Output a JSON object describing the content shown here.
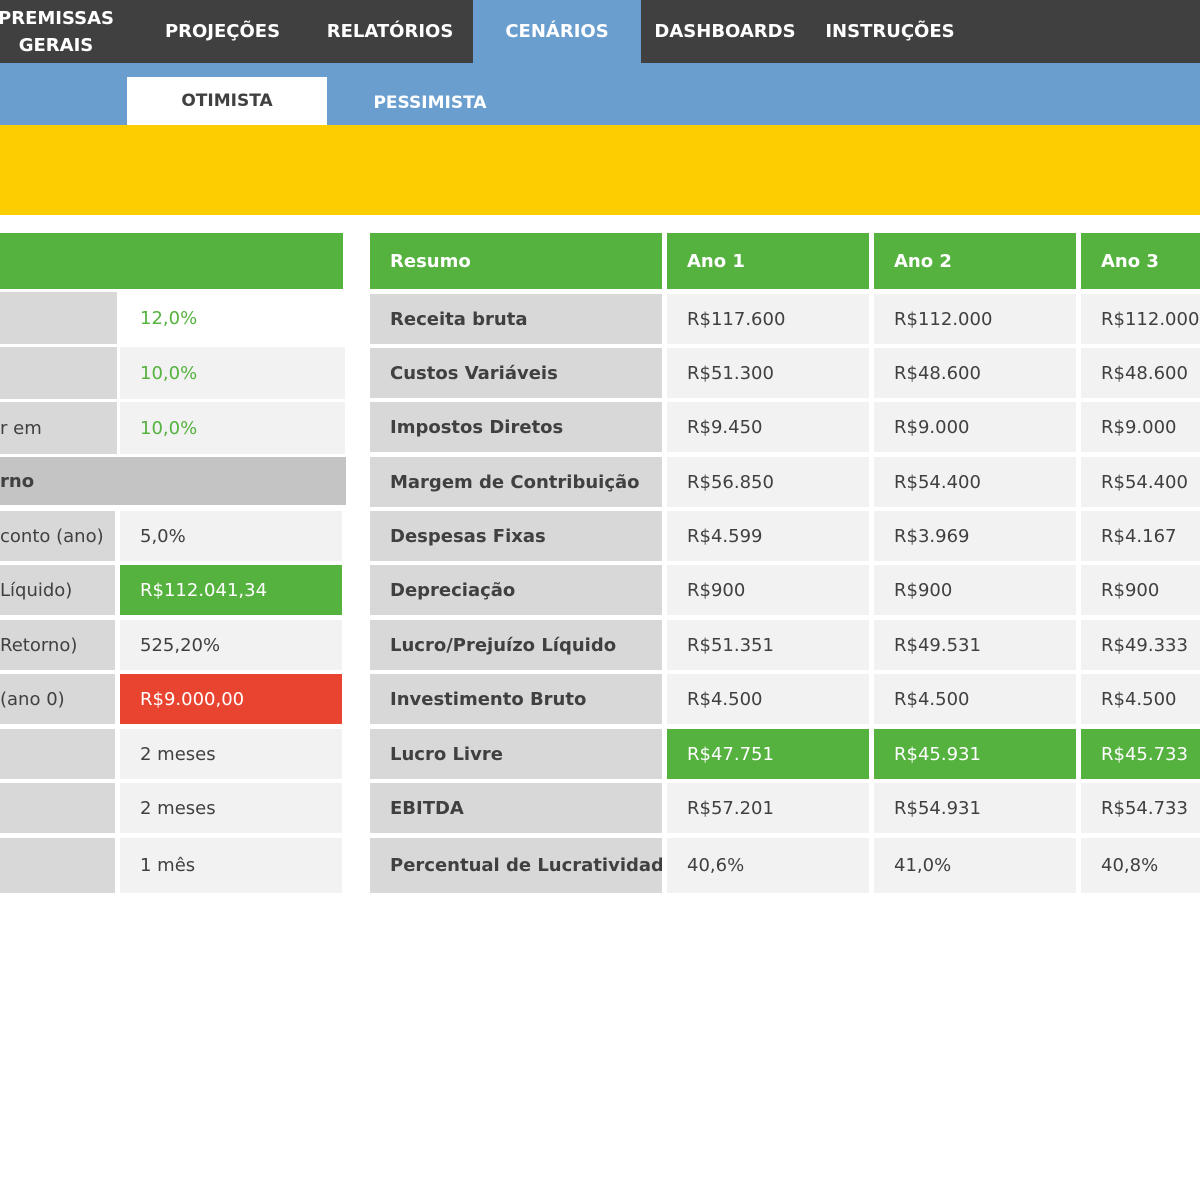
{
  "topnav": {
    "items": [
      {
        "label_line1": "PREMISSAS",
        "label_line2": "GERAIS"
      },
      {
        "label_line1": "PROJEÇÕES"
      },
      {
        "label_line1": "RELATÓRIOS"
      },
      {
        "label_line1": "CENÁRIOS"
      },
      {
        "label_line1": "DASHBOARDS"
      },
      {
        "label_line1": "INSTRUÇÕES"
      }
    ],
    "active": "CENÁRIOS"
  },
  "subnav": {
    "tabs": [
      {
        "label": "OTIMISTA"
      },
      {
        "label": "PESSIMISTA"
      }
    ],
    "active": "OTIMISTA"
  },
  "left_panel": {
    "rows": [
      {
        "label": "",
        "value": "12,0%"
      },
      {
        "label": "",
        "value": "10,0%"
      },
      {
        "label": "r em",
        "value": "10,0%"
      },
      {
        "label": "rno"
      },
      {
        "label": "conto (ano)",
        "value": "5,0%"
      },
      {
        "label": " Líquido)",
        "value": "R$112.041,34"
      },
      {
        "label": "Retorno)",
        "value": "525,20%"
      },
      {
        "label": "(ano 0)",
        "value": "R$9.000,00"
      },
      {
        "label": "",
        "value": "2 meses"
      },
      {
        "label": "",
        "value": "2 meses"
      },
      {
        "label": "",
        "value": "1 mês"
      }
    ]
  },
  "summary": {
    "headers": [
      "Resumo",
      "Ano 1",
      "Ano 2",
      "Ano 3"
    ],
    "rows": [
      {
        "label": "Receita bruta",
        "values": [
          "R$117.600",
          "R$112.000",
          "R$112.000"
        ]
      },
      {
        "label": "Custos Variáveis",
        "values": [
          "R$51.300",
          "R$48.600",
          "R$48.600"
        ]
      },
      {
        "label": "Impostos Diretos",
        "values": [
          "R$9.450",
          "R$9.000",
          "R$9.000"
        ]
      },
      {
        "label": "Margem de Contribuição",
        "values": [
          "R$56.850",
          "R$54.400",
          "R$54.400"
        ]
      },
      {
        "label": "Despesas Fixas",
        "values": [
          "R$4.599",
          "R$3.969",
          "R$4.167"
        ]
      },
      {
        "label": "Depreciação",
        "values": [
          "R$900",
          "R$900",
          "R$900"
        ]
      },
      {
        "label": "Lucro/Prejuízo Líquido",
        "values": [
          "R$51.351",
          "R$49.531",
          "R$49.333"
        ]
      },
      {
        "label": "Investimento Bruto",
        "values": [
          "R$4.500",
          "R$4.500",
          "R$4.500"
        ]
      },
      {
        "label": "Lucro Livre",
        "values": [
          "R$47.751",
          "R$45.931",
          "R$45.733"
        ]
      },
      {
        "label": "EBITDA",
        "values": [
          "R$57.201",
          "R$54.931",
          "R$54.733"
        ]
      },
      {
        "label": "Percentual de Lucratividade",
        "values": [
          "40,6%",
          "41,0%",
          "40,8%"
        ]
      }
    ]
  },
  "colors": {
    "nav_bg": "#404040",
    "accent_blue": "#6a9ecf",
    "banner_yellow": "#fccd00",
    "header_green": "#55b23f",
    "negative_red": "#e9442f"
  }
}
